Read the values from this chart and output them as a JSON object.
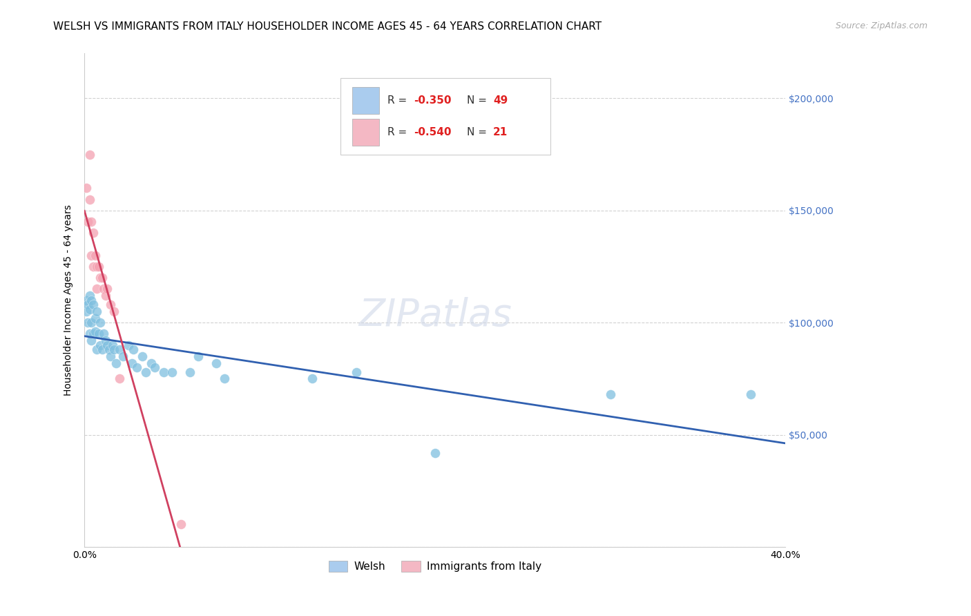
{
  "title": "WELSH VS IMMIGRANTS FROM ITALY HOUSEHOLDER INCOME AGES 45 - 64 YEARS CORRELATION CHART",
  "source_text": "Source: ZipAtlas.com",
  "ylabel": "Householder Income Ages 45 - 64 years",
  "xlim": [
    0.0,
    0.4
  ],
  "ylim": [
    0,
    220000
  ],
  "yticks": [
    0,
    50000,
    100000,
    150000,
    200000
  ],
  "ytick_labels": [
    "",
    "$50,000",
    "$100,000",
    "$150,000",
    "$200,000"
  ],
  "watermark": "ZIPatlas",
  "welsh_x": [
    0.001,
    0.001,
    0.002,
    0.002,
    0.003,
    0.003,
    0.003,
    0.004,
    0.004,
    0.004,
    0.005,
    0.005,
    0.006,
    0.006,
    0.007,
    0.007,
    0.008,
    0.009,
    0.009,
    0.01,
    0.011,
    0.012,
    0.013,
    0.014,
    0.015,
    0.016,
    0.017,
    0.018,
    0.02,
    0.022,
    0.025,
    0.027,
    0.028,
    0.03,
    0.033,
    0.035,
    0.038,
    0.04,
    0.045,
    0.05,
    0.06,
    0.065,
    0.075,
    0.08,
    0.13,
    0.155,
    0.2,
    0.3,
    0.38
  ],
  "welsh_y": [
    110000,
    105000,
    108000,
    100000,
    112000,
    106000,
    95000,
    110000,
    100000,
    92000,
    108000,
    95000,
    102000,
    96000,
    105000,
    88000,
    95000,
    100000,
    90000,
    88000,
    95000,
    92000,
    90000,
    88000,
    85000,
    90000,
    88000,
    82000,
    88000,
    85000,
    90000,
    82000,
    88000,
    80000,
    85000,
    78000,
    82000,
    80000,
    78000,
    78000,
    78000,
    85000,
    82000,
    75000,
    75000,
    78000,
    42000,
    68000,
    68000
  ],
  "italy_x": [
    0.001,
    0.002,
    0.003,
    0.003,
    0.004,
    0.004,
    0.005,
    0.005,
    0.006,
    0.007,
    0.007,
    0.008,
    0.009,
    0.01,
    0.011,
    0.012,
    0.013,
    0.015,
    0.017,
    0.02,
    0.055
  ],
  "italy_y": [
    160000,
    145000,
    175000,
    155000,
    145000,
    130000,
    140000,
    125000,
    130000,
    125000,
    115000,
    125000,
    120000,
    120000,
    115000,
    112000,
    115000,
    108000,
    105000,
    75000,
    10000
  ],
  "welsh_R": -0.35,
  "welsh_N": 49,
  "italy_R": -0.54,
  "italy_N": 21,
  "welsh_color": "#7fbfdf",
  "italy_color": "#f4a0b0",
  "welsh_line_color": "#3060b0",
  "italy_line_color": "#d04060",
  "italy_dash_color": "#cccccc",
  "title_fontsize": 11,
  "source_fontsize": 9,
  "axis_label_fontsize": 10,
  "tick_fontsize": 10,
  "legend_fontsize": 11,
  "watermark_fontsize": 40,
  "legend_welsh_color": "#aaccee",
  "legend_italy_color": "#f4b8c4"
}
